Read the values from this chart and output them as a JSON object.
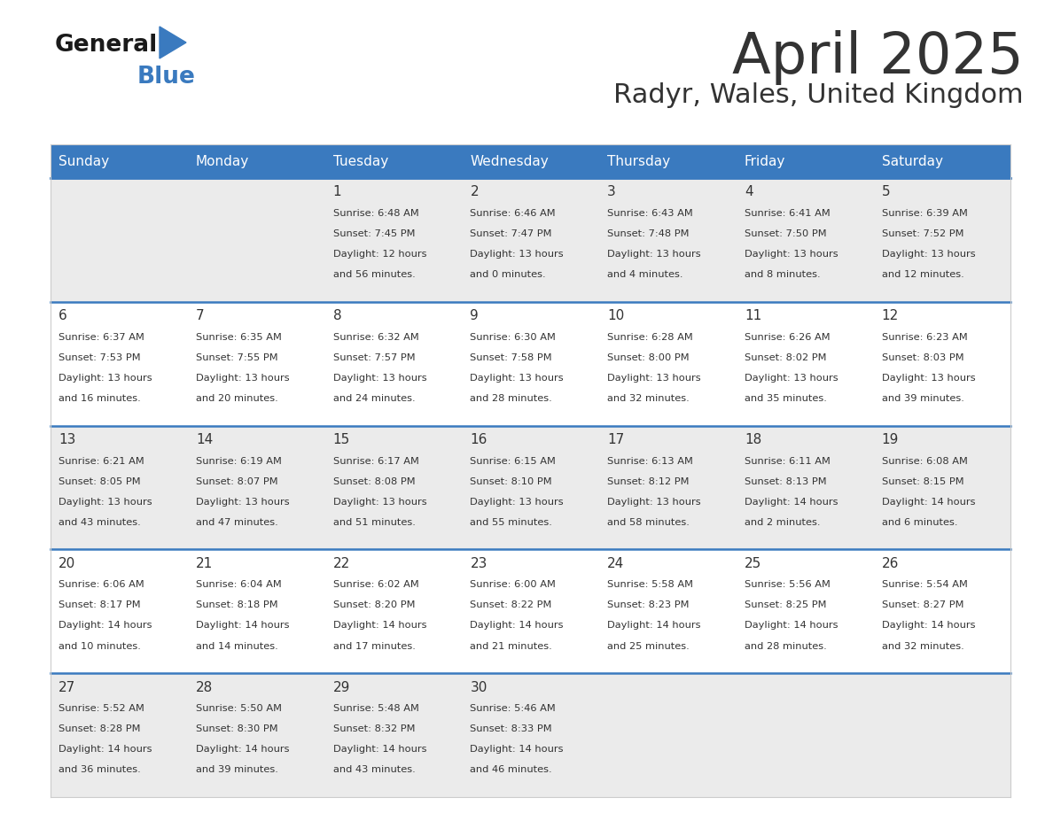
{
  "title": "April 2025",
  "subtitle": "Radyr, Wales, United Kingdom",
  "header_color": "#3a7abf",
  "header_text_color": "#ffffff",
  "days_of_week": [
    "Sunday",
    "Monday",
    "Tuesday",
    "Wednesday",
    "Thursday",
    "Friday",
    "Saturday"
  ],
  "background_color": "#ffffff",
  "row_line_color": "#3a7abf",
  "text_color": "#333333",
  "cell_bg_light": "#ebebeb",
  "cell_bg_white": "#ffffff",
  "calendar_data": [
    [
      {
        "day": null,
        "sunrise": null,
        "sunset": null,
        "daylight_line1": null,
        "daylight_line2": null
      },
      {
        "day": null,
        "sunrise": null,
        "sunset": null,
        "daylight_line1": null,
        "daylight_line2": null
      },
      {
        "day": "1",
        "sunrise": "6:48 AM",
        "sunset": "7:45 PM",
        "daylight_line1": "Daylight: 12 hours",
        "daylight_line2": "and 56 minutes."
      },
      {
        "day": "2",
        "sunrise": "6:46 AM",
        "sunset": "7:47 PM",
        "daylight_line1": "Daylight: 13 hours",
        "daylight_line2": "and 0 minutes."
      },
      {
        "day": "3",
        "sunrise": "6:43 AM",
        "sunset": "7:48 PM",
        "daylight_line1": "Daylight: 13 hours",
        "daylight_line2": "and 4 minutes."
      },
      {
        "day": "4",
        "sunrise": "6:41 AM",
        "sunset": "7:50 PM",
        "daylight_line1": "Daylight: 13 hours",
        "daylight_line2": "and 8 minutes."
      },
      {
        "day": "5",
        "sunrise": "6:39 AM",
        "sunset": "7:52 PM",
        "daylight_line1": "Daylight: 13 hours",
        "daylight_line2": "and 12 minutes."
      }
    ],
    [
      {
        "day": "6",
        "sunrise": "6:37 AM",
        "sunset": "7:53 PM",
        "daylight_line1": "Daylight: 13 hours",
        "daylight_line2": "and 16 minutes."
      },
      {
        "day": "7",
        "sunrise": "6:35 AM",
        "sunset": "7:55 PM",
        "daylight_line1": "Daylight: 13 hours",
        "daylight_line2": "and 20 minutes."
      },
      {
        "day": "8",
        "sunrise": "6:32 AM",
        "sunset": "7:57 PM",
        "daylight_line1": "Daylight: 13 hours",
        "daylight_line2": "and 24 minutes."
      },
      {
        "day": "9",
        "sunrise": "6:30 AM",
        "sunset": "7:58 PM",
        "daylight_line1": "Daylight: 13 hours",
        "daylight_line2": "and 28 minutes."
      },
      {
        "day": "10",
        "sunrise": "6:28 AM",
        "sunset": "8:00 PM",
        "daylight_line1": "Daylight: 13 hours",
        "daylight_line2": "and 32 minutes."
      },
      {
        "day": "11",
        "sunrise": "6:26 AM",
        "sunset": "8:02 PM",
        "daylight_line1": "Daylight: 13 hours",
        "daylight_line2": "and 35 minutes."
      },
      {
        "day": "12",
        "sunrise": "6:23 AM",
        "sunset": "8:03 PM",
        "daylight_line1": "Daylight: 13 hours",
        "daylight_line2": "and 39 minutes."
      }
    ],
    [
      {
        "day": "13",
        "sunrise": "6:21 AM",
        "sunset": "8:05 PM",
        "daylight_line1": "Daylight: 13 hours",
        "daylight_line2": "and 43 minutes."
      },
      {
        "day": "14",
        "sunrise": "6:19 AM",
        "sunset": "8:07 PM",
        "daylight_line1": "Daylight: 13 hours",
        "daylight_line2": "and 47 minutes."
      },
      {
        "day": "15",
        "sunrise": "6:17 AM",
        "sunset": "8:08 PM",
        "daylight_line1": "Daylight: 13 hours",
        "daylight_line2": "and 51 minutes."
      },
      {
        "day": "16",
        "sunrise": "6:15 AM",
        "sunset": "8:10 PM",
        "daylight_line1": "Daylight: 13 hours",
        "daylight_line2": "and 55 minutes."
      },
      {
        "day": "17",
        "sunrise": "6:13 AM",
        "sunset": "8:12 PM",
        "daylight_line1": "Daylight: 13 hours",
        "daylight_line2": "and 58 minutes."
      },
      {
        "day": "18",
        "sunrise": "6:11 AM",
        "sunset": "8:13 PM",
        "daylight_line1": "Daylight: 14 hours",
        "daylight_line2": "and 2 minutes."
      },
      {
        "day": "19",
        "sunrise": "6:08 AM",
        "sunset": "8:15 PM",
        "daylight_line1": "Daylight: 14 hours",
        "daylight_line2": "and 6 minutes."
      }
    ],
    [
      {
        "day": "20",
        "sunrise": "6:06 AM",
        "sunset": "8:17 PM",
        "daylight_line1": "Daylight: 14 hours",
        "daylight_line2": "and 10 minutes."
      },
      {
        "day": "21",
        "sunrise": "6:04 AM",
        "sunset": "8:18 PM",
        "daylight_line1": "Daylight: 14 hours",
        "daylight_line2": "and 14 minutes."
      },
      {
        "day": "22",
        "sunrise": "6:02 AM",
        "sunset": "8:20 PM",
        "daylight_line1": "Daylight: 14 hours",
        "daylight_line2": "and 17 minutes."
      },
      {
        "day": "23",
        "sunrise": "6:00 AM",
        "sunset": "8:22 PM",
        "daylight_line1": "Daylight: 14 hours",
        "daylight_line2": "and 21 minutes."
      },
      {
        "day": "24",
        "sunrise": "5:58 AM",
        "sunset": "8:23 PM",
        "daylight_line1": "Daylight: 14 hours",
        "daylight_line2": "and 25 minutes."
      },
      {
        "day": "25",
        "sunrise": "5:56 AM",
        "sunset": "8:25 PM",
        "daylight_line1": "Daylight: 14 hours",
        "daylight_line2": "and 28 minutes."
      },
      {
        "day": "26",
        "sunrise": "5:54 AM",
        "sunset": "8:27 PM",
        "daylight_line1": "Daylight: 14 hours",
        "daylight_line2": "and 32 minutes."
      }
    ],
    [
      {
        "day": "27",
        "sunrise": "5:52 AM",
        "sunset": "8:28 PM",
        "daylight_line1": "Daylight: 14 hours",
        "daylight_line2": "and 36 minutes."
      },
      {
        "day": "28",
        "sunrise": "5:50 AM",
        "sunset": "8:30 PM",
        "daylight_line1": "Daylight: 14 hours",
        "daylight_line2": "and 39 minutes."
      },
      {
        "day": "29",
        "sunrise": "5:48 AM",
        "sunset": "8:32 PM",
        "daylight_line1": "Daylight: 14 hours",
        "daylight_line2": "and 43 minutes."
      },
      {
        "day": "30",
        "sunrise": "5:46 AM",
        "sunset": "8:33 PM",
        "daylight_line1": "Daylight: 14 hours",
        "daylight_line2": "and 46 minutes."
      },
      {
        "day": null,
        "sunrise": null,
        "sunset": null,
        "daylight_line1": null,
        "daylight_line2": null
      },
      {
        "day": null,
        "sunrise": null,
        "sunset": null,
        "daylight_line1": null,
        "daylight_line2": null
      },
      {
        "day": null,
        "sunrise": null,
        "sunset": null,
        "daylight_line1": null,
        "daylight_line2": null
      }
    ]
  ]
}
